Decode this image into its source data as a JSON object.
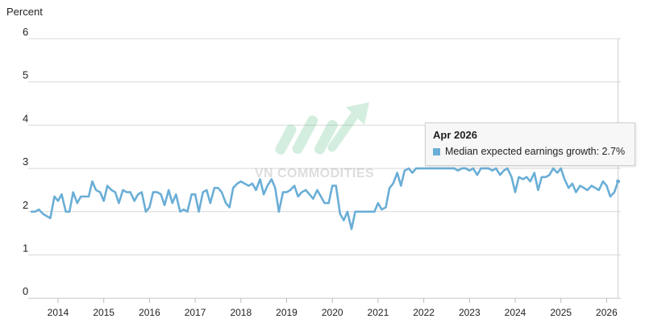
{
  "chart_data": {
    "type": "line",
    "ylabel": "Percent",
    "ylim": [
      0,
      6
    ],
    "yticks": [
      0,
      1,
      2,
      3,
      4,
      5,
      6
    ],
    "xlim": [
      2013.4,
      2026.4
    ],
    "xticks": [
      2014,
      2015,
      2016,
      2017,
      2018,
      2019,
      2020,
      2021,
      2022,
      2023,
      2024,
      2025,
      2026
    ],
    "grid": "horizontal",
    "series": [
      {
        "name": "Median expected earnings growth",
        "color": "#6aaed6",
        "points": [
          [
            2013.42,
            2.0
          ],
          [
            2013.5,
            2.0
          ],
          [
            2013.58,
            2.05
          ],
          [
            2013.67,
            1.95
          ],
          [
            2013.75,
            1.9
          ],
          [
            2013.83,
            1.85
          ],
          [
            2013.92,
            2.35
          ],
          [
            2014.0,
            2.25
          ],
          [
            2014.08,
            2.4
          ],
          [
            2014.17,
            2.0
          ],
          [
            2014.25,
            2.0
          ],
          [
            2014.33,
            2.45
          ],
          [
            2014.42,
            2.2
          ],
          [
            2014.5,
            2.35
          ],
          [
            2014.58,
            2.35
          ],
          [
            2014.67,
            2.35
          ],
          [
            2014.75,
            2.7
          ],
          [
            2014.83,
            2.5
          ],
          [
            2014.92,
            2.45
          ],
          [
            2015.0,
            2.25
          ],
          [
            2015.08,
            2.6
          ],
          [
            2015.17,
            2.5
          ],
          [
            2015.25,
            2.45
          ],
          [
            2015.33,
            2.2
          ],
          [
            2015.42,
            2.5
          ],
          [
            2015.5,
            2.45
          ],
          [
            2015.58,
            2.45
          ],
          [
            2015.67,
            2.25
          ],
          [
            2015.75,
            2.4
          ],
          [
            2015.83,
            2.45
          ],
          [
            2015.92,
            2.0
          ],
          [
            2016.0,
            2.1
          ],
          [
            2016.08,
            2.45
          ],
          [
            2016.17,
            2.45
          ],
          [
            2016.25,
            2.4
          ],
          [
            2016.33,
            2.15
          ],
          [
            2016.42,
            2.5
          ],
          [
            2016.5,
            2.2
          ],
          [
            2016.58,
            2.4
          ],
          [
            2016.67,
            2.0
          ],
          [
            2016.75,
            2.05
          ],
          [
            2016.83,
            2.0
          ],
          [
            2016.92,
            2.4
          ],
          [
            2017.0,
            2.4
          ],
          [
            2017.08,
            2.0
          ],
          [
            2017.17,
            2.45
          ],
          [
            2017.25,
            2.5
          ],
          [
            2017.33,
            2.2
          ],
          [
            2017.42,
            2.55
          ],
          [
            2017.5,
            2.55
          ],
          [
            2017.58,
            2.45
          ],
          [
            2017.67,
            2.2
          ],
          [
            2017.75,
            2.1
          ],
          [
            2017.83,
            2.55
          ],
          [
            2017.92,
            2.65
          ],
          [
            2018.0,
            2.7
          ],
          [
            2018.08,
            2.65
          ],
          [
            2018.17,
            2.6
          ],
          [
            2018.25,
            2.65
          ],
          [
            2018.33,
            2.5
          ],
          [
            2018.42,
            2.75
          ],
          [
            2018.5,
            2.4
          ],
          [
            2018.58,
            2.6
          ],
          [
            2018.67,
            2.75
          ],
          [
            2018.75,
            2.55
          ],
          [
            2018.83,
            2.0
          ],
          [
            2018.92,
            2.45
          ],
          [
            2019.0,
            2.45
          ],
          [
            2019.08,
            2.5
          ],
          [
            2019.17,
            2.6
          ],
          [
            2019.25,
            2.35
          ],
          [
            2019.33,
            2.45
          ],
          [
            2019.42,
            2.5
          ],
          [
            2019.5,
            2.4
          ],
          [
            2019.58,
            2.3
          ],
          [
            2019.67,
            2.5
          ],
          [
            2019.75,
            2.35
          ],
          [
            2019.83,
            2.2
          ],
          [
            2019.92,
            2.2
          ],
          [
            2020.0,
            2.6
          ],
          [
            2020.08,
            2.6
          ],
          [
            2020.17,
            1.95
          ],
          [
            2020.25,
            1.8
          ],
          [
            2020.33,
            2.0
          ],
          [
            2020.42,
            1.6
          ],
          [
            2020.5,
            2.0
          ],
          [
            2020.58,
            2.0
          ],
          [
            2020.67,
            2.0
          ],
          [
            2020.75,
            2.0
          ],
          [
            2020.83,
            2.0
          ],
          [
            2020.92,
            2.0
          ],
          [
            2021.0,
            2.2
          ],
          [
            2021.08,
            2.05
          ],
          [
            2021.17,
            2.1
          ],
          [
            2021.25,
            2.55
          ],
          [
            2021.33,
            2.65
          ],
          [
            2021.42,
            2.9
          ],
          [
            2021.5,
            2.6
          ],
          [
            2021.58,
            2.95
          ],
          [
            2021.67,
            3.0
          ],
          [
            2021.75,
            2.9
          ],
          [
            2021.83,
            3.0
          ],
          [
            2021.92,
            3.0
          ],
          [
            2022.0,
            3.0
          ],
          [
            2022.08,
            3.0
          ],
          [
            2022.17,
            3.0
          ],
          [
            2022.25,
            3.0
          ],
          [
            2022.33,
            3.0
          ],
          [
            2022.42,
            3.0
          ],
          [
            2022.5,
            3.0
          ],
          [
            2022.58,
            3.0
          ],
          [
            2022.67,
            3.0
          ],
          [
            2022.75,
            2.95
          ],
          [
            2022.83,
            3.0
          ],
          [
            2022.92,
            3.0
          ],
          [
            2023.0,
            2.95
          ],
          [
            2023.08,
            3.0
          ],
          [
            2023.17,
            2.85
          ],
          [
            2023.25,
            3.0
          ],
          [
            2023.33,
            3.0
          ],
          [
            2023.42,
            3.0
          ],
          [
            2023.5,
            2.95
          ],
          [
            2023.58,
            3.0
          ],
          [
            2023.67,
            2.85
          ],
          [
            2023.75,
            2.95
          ],
          [
            2023.83,
            3.0
          ],
          [
            2023.92,
            2.8
          ],
          [
            2024.0,
            2.45
          ],
          [
            2024.08,
            2.8
          ],
          [
            2024.17,
            2.75
          ],
          [
            2024.25,
            2.8
          ],
          [
            2024.33,
            2.7
          ],
          [
            2024.42,
            2.9
          ],
          [
            2024.5,
            2.5
          ],
          [
            2024.58,
            2.8
          ],
          [
            2024.67,
            2.8
          ],
          [
            2024.75,
            2.85
          ],
          [
            2024.83,
            3.0
          ],
          [
            2024.92,
            2.9
          ],
          [
            2025.0,
            3.0
          ],
          [
            2025.08,
            2.75
          ],
          [
            2025.17,
            2.55
          ],
          [
            2025.25,
            2.65
          ],
          [
            2025.33,
            2.45
          ],
          [
            2025.42,
            2.6
          ],
          [
            2025.5,
            2.55
          ],
          [
            2025.58,
            2.5
          ],
          [
            2025.67,
            2.6
          ],
          [
            2025.75,
            2.55
          ],
          [
            2025.83,
            2.5
          ],
          [
            2025.92,
            2.7
          ],
          [
            2026.0,
            2.6
          ],
          [
            2026.08,
            2.35
          ],
          [
            2026.17,
            2.45
          ],
          [
            2026.25,
            2.7
          ]
        ]
      }
    ],
    "hover": {
      "x": 2026.25,
      "title": "Apr 2026",
      "label": "Median expected earnings growth: 2.7%"
    }
  },
  "watermark": {
    "text": "VN COMMODITIES",
    "color": "#3bb36b"
  }
}
